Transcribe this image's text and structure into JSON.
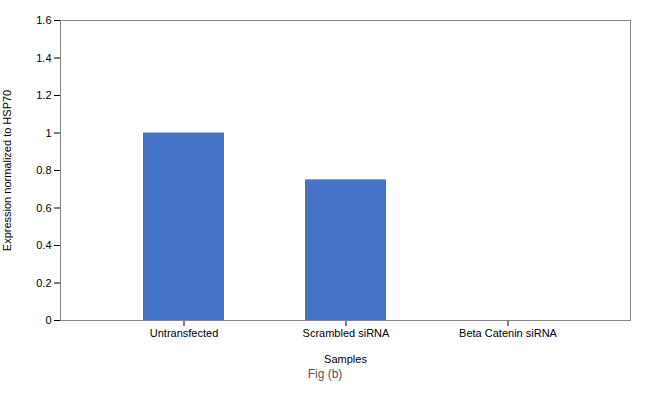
{
  "chart_data": {
    "type": "bar",
    "caption": "Fig (b)",
    "xlabel": "Samples",
    "ylabel": "Expression normalized to HSP70",
    "categories": [
      "Untransfected",
      "Scrambled siRNA",
      "Beta Catenin siRNA"
    ],
    "values": [
      1.0,
      0.75,
      0.0
    ],
    "color": "#4472C4",
    "ylim": [
      0,
      1.6
    ],
    "yticks": [
      0,
      0.2,
      0.4,
      0.6,
      0.8,
      1,
      1.2,
      1.4,
      1.6
    ],
    "grid": false
  }
}
